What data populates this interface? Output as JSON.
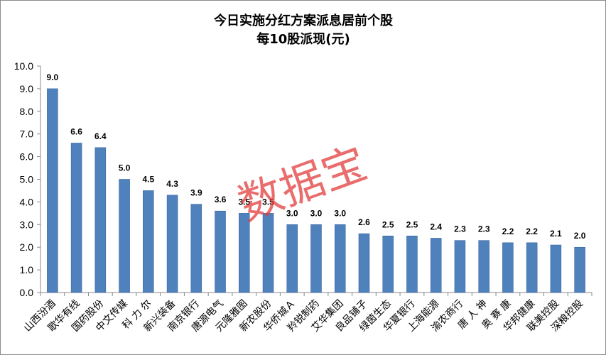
{
  "watermark": "数据宝",
  "colors": {
    "bar": "#4f81bd",
    "bar_edge": "#2f5f95",
    "axis": "#888888"
  },
  "chart_data": {
    "type": "bar",
    "title": "今日实施分红方案派息居前个股",
    "subtitle": "每10股派现(元)",
    "xlabel": "",
    "ylabel": "",
    "ylim": [
      0,
      10
    ],
    "yticks": [
      "0.0",
      "1.0",
      "2.0",
      "3.0",
      "4.0",
      "5.0",
      "6.0",
      "7.0",
      "8.0",
      "9.0",
      "10.0"
    ],
    "grid": false,
    "categories": [
      "山西汾酒",
      "歌华有线",
      "国药股份",
      "中文传媒",
      "科力尔",
      "新兴装备",
      "南京银行",
      "唐源电气",
      "元隆雅图",
      "新农股份",
      "华侨城A",
      "羚锐制药",
      "艾华集团",
      "良品铺子",
      "绿茵生态",
      "华夏银行",
      "上海能源",
      "渝农商行",
      "唐人神",
      "奥赛康",
      "华邦健康",
      "联美控股",
      "深粮控股"
    ],
    "category_labels": [
      "山西汾酒",
      "歌华有线",
      "国药股份",
      "中文传媒",
      "科 力 尔",
      "新兴装备",
      "南京银行",
      "唐源电气",
      "元隆雅图",
      "新农股份",
      "华侨城Ａ",
      "羚锐制药",
      "艾华集团",
      "良品铺子",
      "绿茵生态",
      "华夏银行",
      "上海能源",
      "渝农商行",
      "唐 人 神",
      "奥 赛 康",
      "华邦健康",
      "联美控股",
      "深粮控股"
    ],
    "values": [
      9.0,
      6.6,
      6.4,
      5.0,
      4.5,
      4.3,
      3.9,
      3.6,
      3.5,
      3.5,
      3.0,
      3.0,
      3.0,
      2.6,
      2.5,
      2.5,
      2.4,
      2.3,
      2.3,
      2.2,
      2.2,
      2.1,
      2.0
    ],
    "value_labels": [
      "9.0",
      "6.6",
      "6.4",
      "5.0",
      "4.5",
      "4.3",
      "3.9",
      "3.6",
      "3.5",
      "3.5",
      "3.0",
      "3.0",
      "3.0",
      "2.6",
      "2.5",
      "2.5",
      "2.4",
      "2.3",
      "2.3",
      "2.2",
      "2.2",
      "2.1",
      "2.0"
    ]
  }
}
